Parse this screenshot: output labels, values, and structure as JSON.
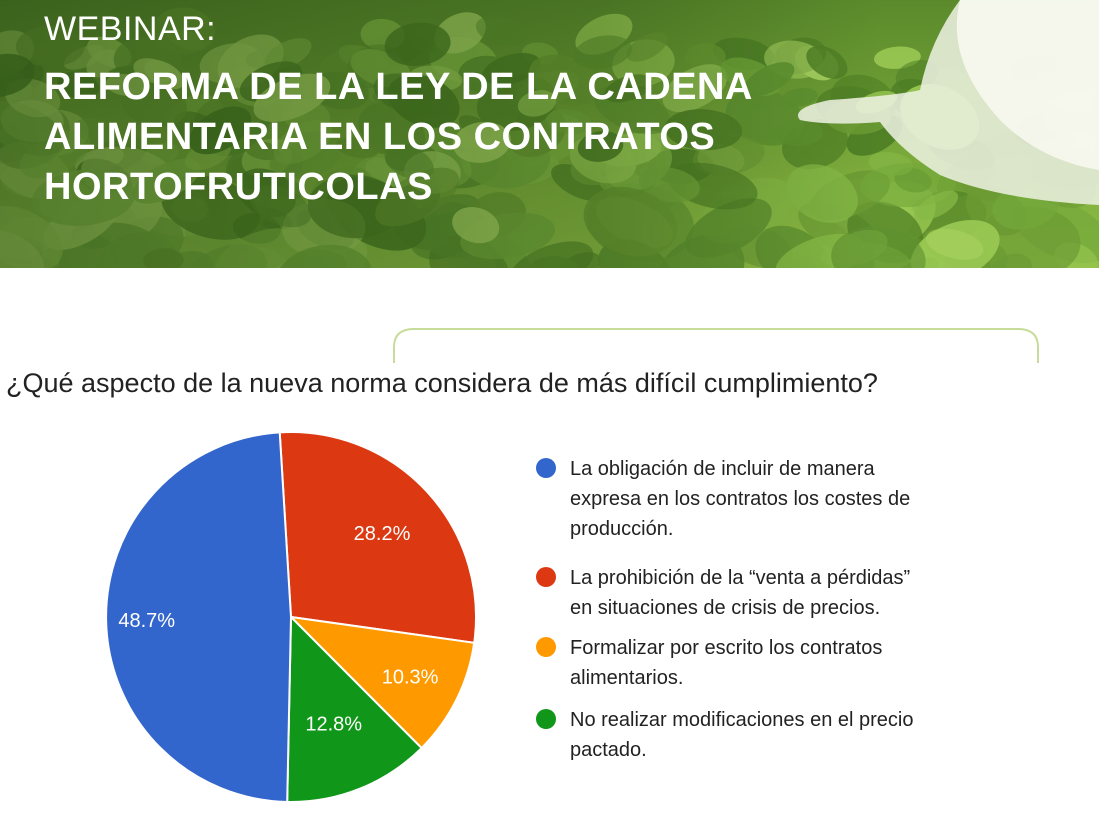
{
  "banner": {
    "kicker": "WEBINAR:",
    "title_lines": [
      "REFORMA DE LA LEY DE LA CADENA",
      "ALIMENTARIA EN LOS CONTRATOS",
      "HORTOFRUTICOLAS"
    ]
  },
  "question": "¿Qué aspecto de la nueva norma considera de más difícil cumplimiento?",
  "colors": {
    "blue": "#3366cc",
    "red": "#dc3912",
    "orange": "#ff9900",
    "green": "#109618"
  },
  "chart_data": {
    "type": "pie",
    "title": "¿Qué aspecto de la nueva norma considera de más difícil cumplimiento?",
    "slices": [
      {
        "label": "La obligación de incluir de manera expresa en los contratos los costes de producción.",
        "value": 48.7,
        "display": "48.7%",
        "color": "#3366cc"
      },
      {
        "label": "La prohibición de la “venta a pérdidas” en situaciones de crisis de precios.",
        "value": 28.2,
        "display": "28.2%",
        "color": "#dc3912"
      },
      {
        "label": "Formalizar por escrito los contratos alimentarios.",
        "value": 10.3,
        "display": "10.3%",
        "color": "#ff9900"
      },
      {
        "label": "No realizar modificaciones en el precio pactado.",
        "value": 12.8,
        "display": "12.8%",
        "color": "#109618"
      }
    ],
    "legend": {
      "position": "right",
      "items": [
        {
          "lines": [
            "La obligación de incluir de manera",
            "expresa en los contratos los costes de",
            "producción."
          ],
          "color": "#3366cc"
        },
        {
          "lines": [
            "La prohibición de la “venta a pérdidas”",
            "en situaciones de crisis de precios."
          ],
          "color": "#dc3912"
        },
        {
          "lines": [
            "Formalizar por escrito los contratos",
            "alimentarios."
          ],
          "color": "#ff9900"
        },
        {
          "lines": [
            "No realizar modificaciones en el precio",
            "pactado."
          ],
          "color": "#109618"
        }
      ]
    }
  }
}
